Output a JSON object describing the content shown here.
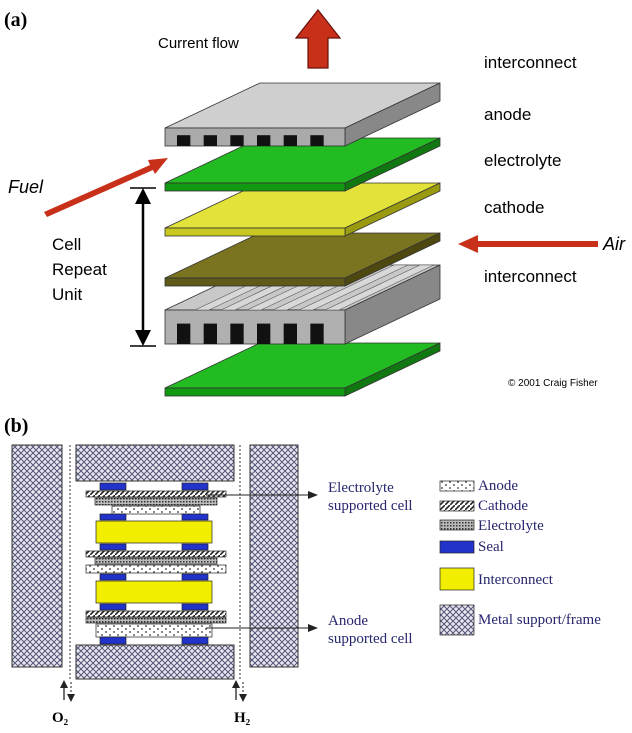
{
  "panel_a": {
    "label": "(a)",
    "current_flow": "Current flow",
    "layers": [
      "interconnect",
      "anode",
      "electrolyte",
      "cathode",
      "interconnect"
    ],
    "fuel": "Fuel",
    "air": "Air",
    "repeat_unit": [
      "Cell",
      "Repeat",
      "Unit"
    ],
    "copyright": "© 2001 Craig Fisher"
  },
  "panel_b": {
    "label": "(b)",
    "callouts": [
      [
        "Electrolyte",
        "supported cell"
      ],
      [
        "Anode",
        "supported cell"
      ]
    ],
    "legend": [
      "Anode",
      "Cathode",
      "Electrolyte",
      "Seal",
      "Interconnect",
      "Metal support/frame"
    ],
    "gases": [
      "O₂",
      "H₂"
    ]
  }
}
